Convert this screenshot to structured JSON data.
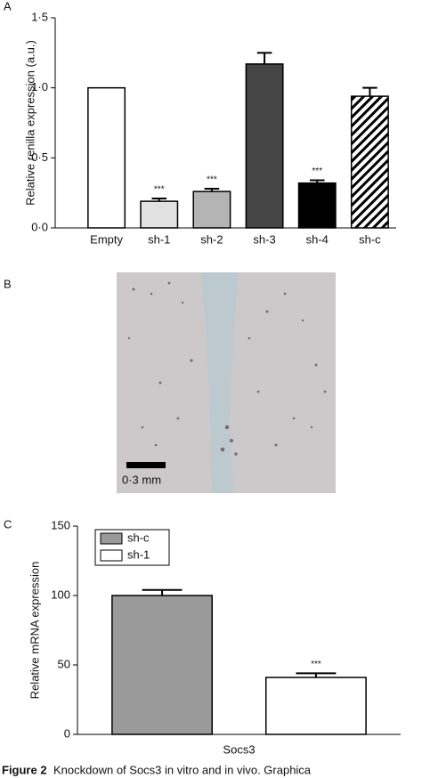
{
  "chart_data": [
    {
      "type": "bar",
      "y_label": "Relative renilla expression (a.u.)",
      "categories": [
        "Empty",
        "sh-1",
        "sh-2",
        "sh-3",
        "sh-4",
        "sh-c"
      ],
      "values": [
        1.0,
        0.19,
        0.26,
        1.17,
        0.32,
        0.94
      ],
      "errors": [
        null,
        0.02,
        0.02,
        0.08,
        0.02,
        0.06
      ],
      "significance": [
        null,
        "***",
        "***",
        null,
        "***",
        null
      ],
      "colors": [
        "#ffffff",
        "#e2e2e2",
        "#b4b4b4",
        "#454545",
        "#000000",
        "#ffffff"
      ],
      "hatched": [
        false,
        false,
        false,
        false,
        false,
        true
      ],
      "ylim": [
        0,
        1.5
      ],
      "yticks": [
        {
          "value": 0,
          "label": "0·0"
        },
        {
          "value": 0.5,
          "label": "0·5"
        },
        {
          "value": 1.0,
          "label": "1·0"
        },
        {
          "value": 1.5,
          "label": "1·5"
        }
      ]
    },
    {
      "type": "grouped-bar",
      "y_label": "Relative mRNA expression",
      "categories": [
        "Socs3"
      ],
      "series": [
        {
          "name": "sh-c",
          "color": "#9a9a9a",
          "values": [
            100
          ],
          "errors": [
            4
          ],
          "significance": [
            null
          ]
        },
        {
          "name": "sh-1",
          "color": "#ffffff",
          "values": [
            41
          ],
          "errors": [
            3
          ],
          "significance": [
            "***"
          ]
        }
      ],
      "legend": "upper left",
      "ylim": [
        0,
        150
      ],
      "yticks": [
        0,
        50,
        100,
        150
      ]
    }
  ],
  "panel_labels": [
    "A",
    "B",
    "C"
  ],
  "image": {
    "scale_label": "0·3 mm"
  },
  "caption": {
    "label": "Figure 2",
    "text": "Knockdown of Socs3 in vitro and in vivo. Graphica"
  }
}
